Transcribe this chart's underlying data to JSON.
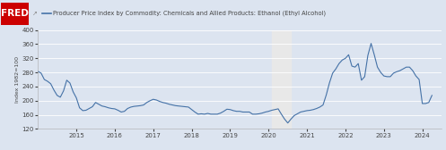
{
  "title": "Producer Price Index by Commodity: Chemicals and Allied Products: Ethanol (Ethyl Alcohol)",
  "ylabel": "Index 1982=100",
  "line_color": "#4572a7",
  "background_color": "#dce4f0",
  "plot_bg_color": "#dce4f0",
  "header_bg_color": "#dce4f0",
  "shade_start": 2020.08,
  "shade_end": 2020.58,
  "shade_color": "#e8e8e8",
  "ylim": [
    120,
    400
  ],
  "yticks": [
    120,
    160,
    200,
    240,
    280,
    320,
    360,
    400
  ],
  "xlim_start": 2014.0,
  "xlim_end": 2024.5,
  "xtick_positions": [
    2015,
    2016,
    2017,
    2018,
    2019,
    2020,
    2021,
    2022,
    2023,
    2024
  ],
  "fred_red": "#cc0000",
  "data": {
    "dates": [
      2014.0,
      2014.083,
      2014.167,
      2014.25,
      2014.333,
      2014.417,
      2014.5,
      2014.583,
      2014.667,
      2014.75,
      2014.833,
      2014.917,
      2015.0,
      2015.083,
      2015.167,
      2015.25,
      2015.333,
      2015.417,
      2015.5,
      2015.583,
      2015.667,
      2015.75,
      2015.833,
      2015.917,
      2016.0,
      2016.083,
      2016.167,
      2016.25,
      2016.333,
      2016.417,
      2016.5,
      2016.583,
      2016.667,
      2016.75,
      2016.833,
      2016.917,
      2017.0,
      2017.083,
      2017.167,
      2017.25,
      2017.333,
      2017.417,
      2017.5,
      2017.583,
      2017.667,
      2017.75,
      2017.833,
      2017.917,
      2018.0,
      2018.083,
      2018.167,
      2018.25,
      2018.333,
      2018.417,
      2018.5,
      2018.583,
      2018.667,
      2018.75,
      2018.833,
      2018.917,
      2019.0,
      2019.083,
      2019.167,
      2019.25,
      2019.333,
      2019.417,
      2019.5,
      2019.583,
      2019.667,
      2019.75,
      2019.833,
      2019.917,
      2020.0,
      2020.083,
      2020.167,
      2020.25,
      2020.333,
      2020.417,
      2020.5,
      2020.583,
      2020.667,
      2020.75,
      2020.833,
      2020.917,
      2021.0,
      2021.083,
      2021.167,
      2021.25,
      2021.333,
      2021.417,
      2021.5,
      2021.583,
      2021.667,
      2021.75,
      2021.833,
      2021.917,
      2022.0,
      2022.083,
      2022.167,
      2022.25,
      2022.333,
      2022.417,
      2022.5,
      2022.583,
      2022.667,
      2022.75,
      2022.833,
      2022.917,
      2023.0,
      2023.083,
      2023.167,
      2023.25,
      2023.333,
      2023.417,
      2023.5,
      2023.583,
      2023.667,
      2023.75,
      2023.833,
      2023.917,
      2024.0,
      2024.083,
      2024.167,
      2024.25
    ],
    "values": [
      283,
      278,
      260,
      255,
      248,
      230,
      215,
      210,
      228,
      258,
      250,
      225,
      208,
      180,
      172,
      173,
      178,
      183,
      195,
      190,
      185,
      183,
      180,
      178,
      177,
      173,
      168,
      170,
      178,
      182,
      184,
      185,
      186,
      188,
      195,
      200,
      204,
      202,
      198,
      195,
      193,
      190,
      188,
      186,
      185,
      184,
      183,
      182,
      175,
      168,
      162,
      163,
      162,
      164,
      162,
      162,
      162,
      165,
      170,
      176,
      175,
      172,
      170,
      170,
      168,
      168,
      168,
      162,
      162,
      163,
      165,
      168,
      170,
      173,
      175,
      177,
      162,
      148,
      137,
      148,
      158,
      163,
      168,
      170,
      172,
      173,
      175,
      178,
      182,
      188,
      216,
      250,
      278,
      290,
      305,
      315,
      320,
      330,
      298,
      295,
      305,
      258,
      268,
      328,
      362,
      330,
      295,
      280,
      270,
      268,
      268,
      278,
      282,
      285,
      290,
      295,
      295,
      285,
      270,
      260,
      192,
      192,
      195,
      215
    ]
  }
}
